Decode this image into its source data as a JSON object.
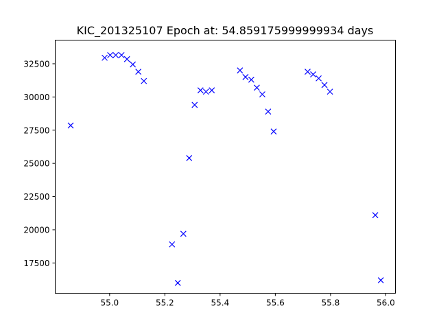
{
  "chart_data": {
    "type": "scatter",
    "title": "KIC_201325107 Epoch at: 54.859175999999934 days",
    "xlabel": "",
    "ylabel": "",
    "xlim": [
      54.803,
      56.035
    ],
    "ylim": [
      15220,
      34280
    ],
    "xticks": [
      55.0,
      55.2,
      55.4,
      55.6,
      55.8,
      56.0
    ],
    "xtick_labels": [
      "55.0",
      "55.2",
      "55.4",
      "55.6",
      "55.8",
      "56.0"
    ],
    "yticks": [
      17500,
      20000,
      22500,
      25000,
      27500,
      30000,
      32500
    ],
    "ytick_labels": [
      "17500",
      "20000",
      "22500",
      "25000",
      "27500",
      "30000",
      "32500"
    ],
    "marker": "x",
    "color": "#0000ff",
    "grid": false,
    "series": [
      {
        "name": "",
        "points": [
          [
            54.859,
            27850
          ],
          [
            54.982,
            32950
          ],
          [
            55.002,
            33150
          ],
          [
            55.022,
            33150
          ],
          [
            55.043,
            33150
          ],
          [
            55.063,
            32850
          ],
          [
            55.084,
            32450
          ],
          [
            55.104,
            31900
          ],
          [
            55.124,
            31200
          ],
          [
            55.226,
            18900
          ],
          [
            55.247,
            16000
          ],
          [
            55.267,
            19700
          ],
          [
            55.288,
            25400
          ],
          [
            55.308,
            29400
          ],
          [
            55.329,
            30500
          ],
          [
            55.349,
            30400
          ],
          [
            55.37,
            30500
          ],
          [
            55.472,
            32000
          ],
          [
            55.492,
            31500
          ],
          [
            55.513,
            31300
          ],
          [
            55.533,
            30700
          ],
          [
            55.553,
            30200
          ],
          [
            55.574,
            28900
          ],
          [
            55.594,
            27400
          ],
          [
            55.717,
            31900
          ],
          [
            55.737,
            31700
          ],
          [
            55.757,
            31400
          ],
          [
            55.778,
            30900
          ],
          [
            55.798,
            30400
          ],
          [
            55.962,
            21100
          ],
          [
            55.982,
            16200
          ]
        ]
      }
    ]
  }
}
